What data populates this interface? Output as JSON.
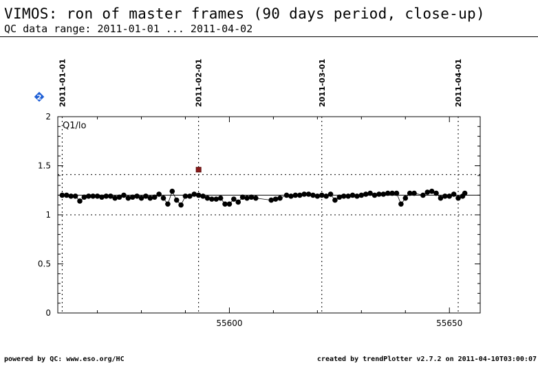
{
  "header": {
    "title": "VIMOS: ron of master frames (90 days period, close-up)",
    "subtitle": "QC data range: 2011-01-01 ... 2011-04-02"
  },
  "footer": {
    "left": "powered by QC: www.eso.org/HC",
    "right": "created by trendPlotter v2.7.2 on 2011-04-10T03:00:07"
  },
  "badge": {
    "icon": "diamond-2-icon",
    "label": "2",
    "color": "#1e5fd6"
  },
  "colors": {
    "points": "#000000",
    "outlier": "#8b1a1a"
  },
  "chart_data": {
    "type": "scatter",
    "panel_label": "Q1/lo",
    "xlim": [
      55561,
      55657
    ],
    "ylim": [
      0,
      2
    ],
    "x_ticks": [
      55600,
      55650
    ],
    "y_ticks": [
      0,
      0.5,
      1,
      1.5,
      2
    ],
    "date_markers": [
      {
        "label": "2011-01-01",
        "x": 55562
      },
      {
        "label": "2011-02-01",
        "x": 55593
      },
      {
        "label": "2011-03-01",
        "x": 55621
      },
      {
        "label": "2011-04-01",
        "x": 55652
      }
    ],
    "reference_lines": {
      "mean": 1.2,
      "upper": 1.41,
      "lower": 1.0
    },
    "grid": false,
    "outliers": [
      {
        "x": 55593,
        "y": 1.46
      }
    ],
    "points": [
      {
        "x": 55562.0,
        "y": 1.2
      },
      {
        "x": 55563.0,
        "y": 1.2
      },
      {
        "x": 55564.0,
        "y": 1.19
      },
      {
        "x": 55565.0,
        "y": 1.19
      },
      {
        "x": 55566.0,
        "y": 1.14
      },
      {
        "x": 55567.0,
        "y": 1.18
      },
      {
        "x": 55568.0,
        "y": 1.19
      },
      {
        "x": 55569.0,
        "y": 1.19
      },
      {
        "x": 55570.0,
        "y": 1.19
      },
      {
        "x": 55571.0,
        "y": 1.18
      },
      {
        "x": 55572.0,
        "y": 1.19
      },
      {
        "x": 55573.0,
        "y": 1.19
      },
      {
        "x": 55574.0,
        "y": 1.17
      },
      {
        "x": 55575.0,
        "y": 1.18
      },
      {
        "x": 55576.0,
        "y": 1.2
      },
      {
        "x": 55577.0,
        "y": 1.17
      },
      {
        "x": 55578.0,
        "y": 1.18
      },
      {
        "x": 55579.0,
        "y": 1.19
      },
      {
        "x": 55580.0,
        "y": 1.17
      },
      {
        "x": 55581.0,
        "y": 1.19
      },
      {
        "x": 55582.0,
        "y": 1.17
      },
      {
        "x": 55583.0,
        "y": 1.18
      },
      {
        "x": 55584.0,
        "y": 1.21
      },
      {
        "x": 55585.0,
        "y": 1.17
      },
      {
        "x": 55586.0,
        "y": 1.11
      },
      {
        "x": 55587.0,
        "y": 1.24
      },
      {
        "x": 55588.0,
        "y": 1.15
      },
      {
        "x": 55589.0,
        "y": 1.1
      },
      {
        "x": 55590.0,
        "y": 1.19
      },
      {
        "x": 55591.0,
        "y": 1.19
      },
      {
        "x": 55592.0,
        "y": 1.21
      },
      {
        "x": 55593.0,
        "y": 1.2
      },
      {
        "x": 55594.0,
        "y": 1.19
      },
      {
        "x": 55595.0,
        "y": 1.17
      },
      {
        "x": 55596.0,
        "y": 1.16
      },
      {
        "x": 55597.0,
        "y": 1.16
      },
      {
        "x": 55598.0,
        "y": 1.17
      },
      {
        "x": 55599.0,
        "y": 1.11
      },
      {
        "x": 55600.0,
        "y": 1.11
      },
      {
        "x": 55601.0,
        "y": 1.16
      },
      {
        "x": 55602.0,
        "y": 1.13
      },
      {
        "x": 55603.0,
        "y": 1.18
      },
      {
        "x": 55604.0,
        "y": 1.17
      },
      {
        "x": 55605.0,
        "y": 1.18
      },
      {
        "x": 55606.0,
        "y": 1.17
      },
      {
        "x": 55609.5,
        "y": 1.15
      },
      {
        "x": 55610.5,
        "y": 1.16
      },
      {
        "x": 55611.5,
        "y": 1.17
      },
      {
        "x": 55613.0,
        "y": 1.2
      },
      {
        "x": 55614.0,
        "y": 1.19
      },
      {
        "x": 55615.0,
        "y": 1.2
      },
      {
        "x": 55616.0,
        "y": 1.2
      },
      {
        "x": 55617.0,
        "y": 1.21
      },
      {
        "x": 55618.0,
        "y": 1.21
      },
      {
        "x": 55619.0,
        "y": 1.2
      },
      {
        "x": 55620.0,
        "y": 1.19
      },
      {
        "x": 55621.0,
        "y": 1.2
      },
      {
        "x": 55622.0,
        "y": 1.19
      },
      {
        "x": 55623.0,
        "y": 1.21
      },
      {
        "x": 55624.0,
        "y": 1.15
      },
      {
        "x": 55625.0,
        "y": 1.18
      },
      {
        "x": 55626.0,
        "y": 1.19
      },
      {
        "x": 55627.0,
        "y": 1.19
      },
      {
        "x": 55628.0,
        "y": 1.2
      },
      {
        "x": 55629.0,
        "y": 1.19
      },
      {
        "x": 55630.0,
        "y": 1.2
      },
      {
        "x": 55631.0,
        "y": 1.21
      },
      {
        "x": 55632.0,
        "y": 1.22
      },
      {
        "x": 55633.0,
        "y": 1.2
      },
      {
        "x": 55634.0,
        "y": 1.21
      },
      {
        "x": 55635.0,
        "y": 1.21
      },
      {
        "x": 55636.0,
        "y": 1.22
      },
      {
        "x": 55637.0,
        "y": 1.22
      },
      {
        "x": 55638.0,
        "y": 1.22
      },
      {
        "x": 55639.0,
        "y": 1.11
      },
      {
        "x": 55640.0,
        "y": 1.17
      },
      {
        "x": 55641.0,
        "y": 1.22
      },
      {
        "x": 55642.0,
        "y": 1.22
      },
      {
        "x": 55644.0,
        "y": 1.2
      },
      {
        "x": 55645.0,
        "y": 1.23
      },
      {
        "x": 55646.0,
        "y": 1.24
      },
      {
        "x": 55647.0,
        "y": 1.22
      },
      {
        "x": 55648.0,
        "y": 1.17
      },
      {
        "x": 55649.0,
        "y": 1.19
      },
      {
        "x": 55650.0,
        "y": 1.19
      },
      {
        "x": 55651.0,
        "y": 1.21
      },
      {
        "x": 55652.0,
        "y": 1.17
      },
      {
        "x": 55653.0,
        "y": 1.19
      },
      {
        "x": 55653.5,
        "y": 1.22
      }
    ]
  }
}
